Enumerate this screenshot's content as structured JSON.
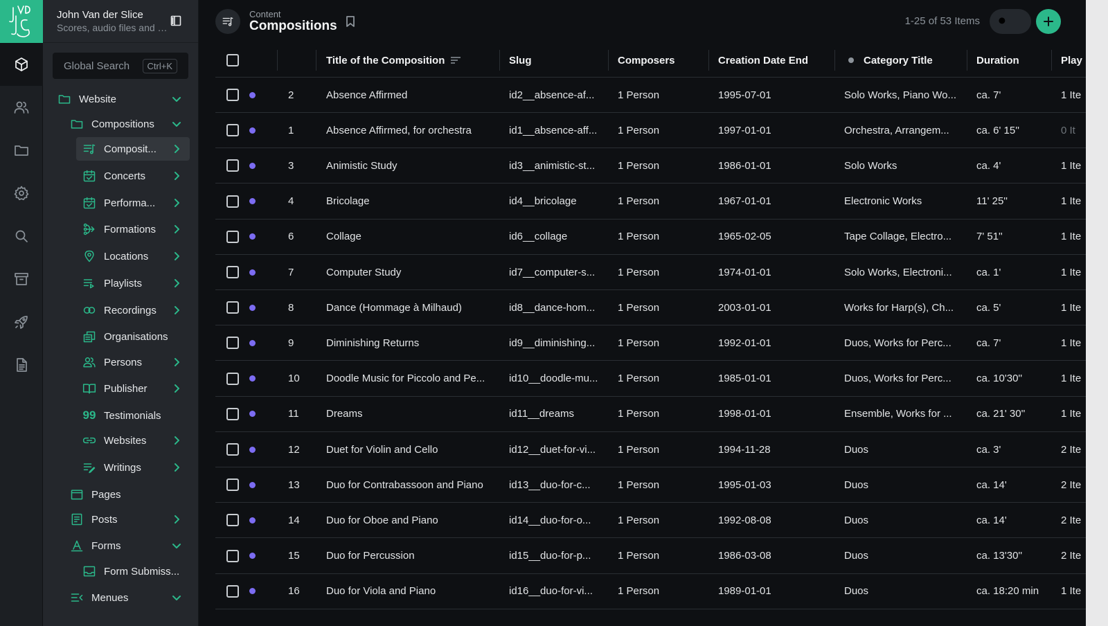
{
  "workspace": {
    "name": "John Van der Slice",
    "subtitle": "Scores, audio files and more"
  },
  "rail": [
    "content-icon",
    "users-icon",
    "folder-icon",
    "settings-icon",
    "search-icon",
    "archive-icon",
    "rocket-icon",
    "document-icon"
  ],
  "search": {
    "label": "Global Search",
    "shortcut": "Ctrl+K"
  },
  "nav": {
    "website": "Website",
    "compositions_group": "Compositions",
    "compositions": "Composit...",
    "concerts": "Concerts",
    "performances": "Performa...",
    "formations": "Formations",
    "locations": "Locations",
    "playlists": "Playlists",
    "recordings": "Recordings",
    "organisations": "Organisations",
    "persons": "Persons",
    "publisher": "Publisher",
    "testimonials": "Testimonials",
    "websites": "Websites",
    "writings": "Writings",
    "pages": "Pages",
    "posts": "Posts",
    "forms": "Forms",
    "form_submissions": "Form Submiss...",
    "menues": "Menues"
  },
  "header": {
    "breadcrumb": "Content",
    "title": "Compositions",
    "count": "1-25 of 53 Items"
  },
  "colors": {
    "accent": "#2bb88a",
    "status_dot": "#7c6cf2",
    "background": "#0e1013"
  },
  "columns": {
    "title": "Title of the Composition",
    "slug": "Slug",
    "composers": "Composers",
    "date": "Creation Date End",
    "category": "Category Title",
    "duration": "Duration",
    "playlists": "Play"
  },
  "rows": [
    {
      "id": "2",
      "title": "Absence Affirmed",
      "slug": "id2__absence-af...",
      "composers": "1 Person",
      "date": "1995-07-01",
      "category": "Solo Works, Piano Wo...",
      "duration": "ca. 7'",
      "playlists": "1 Ite"
    },
    {
      "id": "1",
      "title": "Absence Affirmed, for orchestra",
      "slug": "id1__absence-aff...",
      "composers": "1 Person",
      "date": "1997-01-01",
      "category": "Orchestra, Arrangem...",
      "duration": "ca. 6' 15''",
      "playlists": "0 It"
    },
    {
      "id": "3",
      "title": "Animistic Study",
      "slug": "id3__animistic-st...",
      "composers": "1 Person",
      "date": "1986-01-01",
      "category": "Solo Works",
      "duration": "ca. 4'",
      "playlists": "1 Ite"
    },
    {
      "id": "4",
      "title": "Bricolage",
      "slug": "id4__bricolage",
      "composers": "1 Person",
      "date": "1967-01-01",
      "category": "Electronic Works",
      "duration": "11' 25''",
      "playlists": "1 Ite"
    },
    {
      "id": "6",
      "title": "Collage",
      "slug": "id6__collage",
      "composers": "1 Person",
      "date": "1965-02-05",
      "category": "Tape Collage, Electro...",
      "duration": "7' 51''",
      "playlists": "1 Ite"
    },
    {
      "id": "7",
      "title": "Computer Study",
      "slug": "id7__computer-s...",
      "composers": "1 Person",
      "date": "1974-01-01",
      "category": "Solo Works, Electroni...",
      "duration": "ca. 1'",
      "playlists": "1 Ite"
    },
    {
      "id": "8",
      "title": "Dance (Hommage à Milhaud)",
      "slug": "id8__dance-hom...",
      "composers": "1 Person",
      "date": "2003-01-01",
      "category": "Works for Harp(s), Ch...",
      "duration": "ca. 5'",
      "playlists": "1 Ite"
    },
    {
      "id": "9",
      "title": "Diminishing Returns",
      "slug": "id9__diminishing...",
      "composers": "1 Person",
      "date": "1992-01-01",
      "category": "Duos, Works for Perc...",
      "duration": "ca. 7'",
      "playlists": "1 Ite"
    },
    {
      "id": "10",
      "title": "Doodle Music for Piccolo and Pe...",
      "slug": "id10__doodle-mu...",
      "composers": "1 Person",
      "date": "1985-01-01",
      "category": "Duos, Works for Perc...",
      "duration": "ca. 10'30''",
      "playlists": "1 Ite"
    },
    {
      "id": "11",
      "title": "Dreams",
      "slug": "id11__dreams",
      "composers": "1 Person",
      "date": "1998-01-01",
      "category": "Ensemble, Works for ...",
      "duration": "ca. 21' 30''",
      "playlists": "1 Ite"
    },
    {
      "id": "12",
      "title": "Duet for Violin and Cello",
      "slug": "id12__duet-for-vi...",
      "composers": "1 Person",
      "date": "1994-11-28",
      "category": "Duos",
      "duration": "ca. 3'",
      "playlists": "2 Ite"
    },
    {
      "id": "13",
      "title": "Duo for Contrabassoon and Piano",
      "slug": "id13__duo-for-c...",
      "composers": "1 Person",
      "date": "1995-01-03",
      "category": "Duos",
      "duration": "ca. 14'",
      "playlists": "2 Ite"
    },
    {
      "id": "14",
      "title": "Duo for Oboe and Piano",
      "slug": "id14__duo-for-o...",
      "composers": "1 Person",
      "date": "1992-08-08",
      "category": "Duos",
      "duration": "ca. 14'",
      "playlists": "2 Ite"
    },
    {
      "id": "15",
      "title": "Duo for Percussion",
      "slug": "id15__duo-for-p...",
      "composers": "1 Person",
      "date": "1986-03-08",
      "category": "Duos",
      "duration": "ca. 13'30''",
      "playlists": "2 Ite"
    },
    {
      "id": "16",
      "title": "Duo for Viola and Piano",
      "slug": "id16__duo-for-vi...",
      "composers": "1 Person",
      "date": "1989-01-01",
      "category": "Duos",
      "duration": "ca. 18:20 min",
      "playlists": "1 Ite"
    }
  ]
}
